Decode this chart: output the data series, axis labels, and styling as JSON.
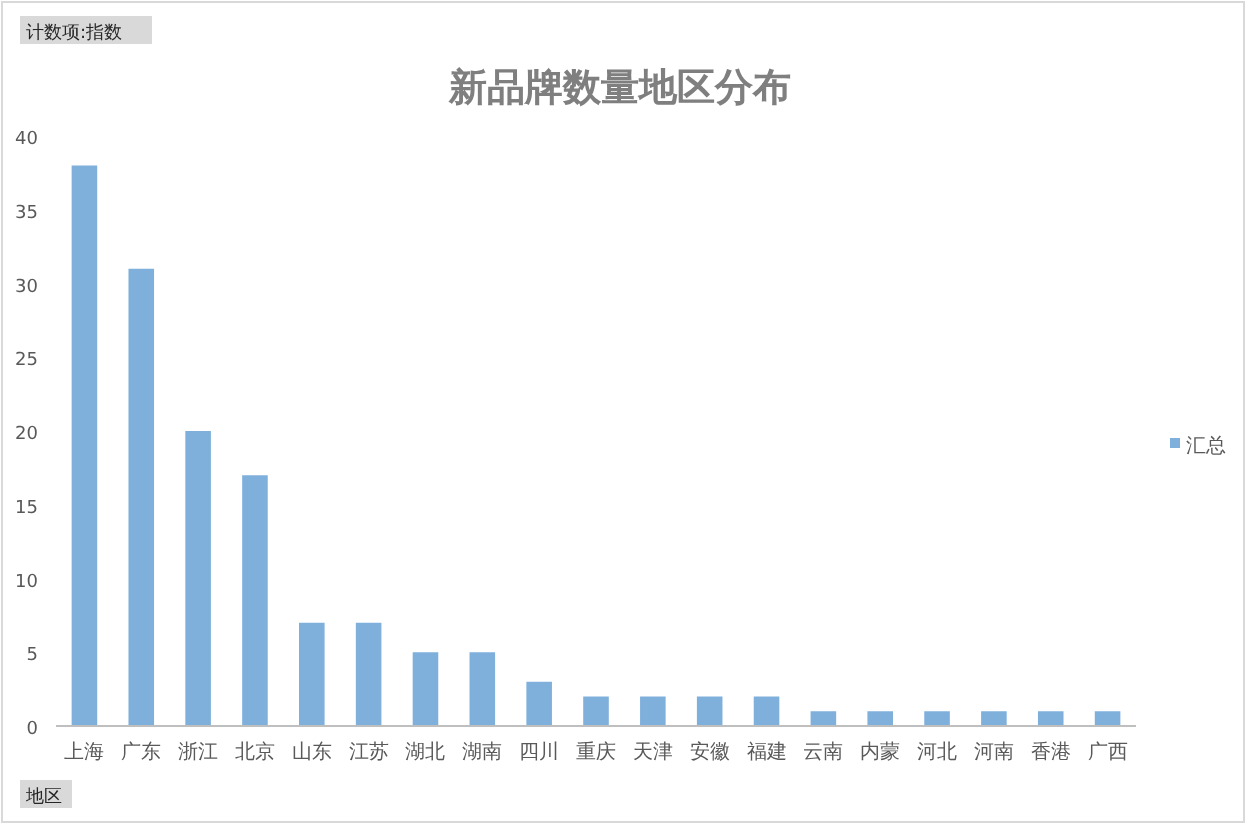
{
  "chart_data": {
    "type": "bar",
    "title": "新品牌数量地区分布",
    "categories": [
      "上海",
      "广东",
      "浙江",
      "北京",
      "山东",
      "江苏",
      "湖北",
      "湖南",
      "四川",
      "重庆",
      "天津",
      "安徽",
      "福建",
      "云南",
      "内蒙",
      "河北",
      "河南",
      "香港",
      "广西"
    ],
    "series": [
      {
        "name": "汇总",
        "color": "#7fb0dc",
        "values": [
          38,
          31,
          20,
          17,
          7,
          7,
          5,
          5,
          3,
          2,
          2,
          2,
          2,
          1,
          1,
          1,
          1,
          1,
          1
        ]
      }
    ],
    "ylim": [
      0,
      40
    ],
    "yticks": [
      0,
      5,
      10,
      15,
      20,
      25,
      30,
      35,
      40
    ],
    "grid": false,
    "legend": "right",
    "annotations": [
      "计数项:指数",
      "地区"
    ]
  }
}
